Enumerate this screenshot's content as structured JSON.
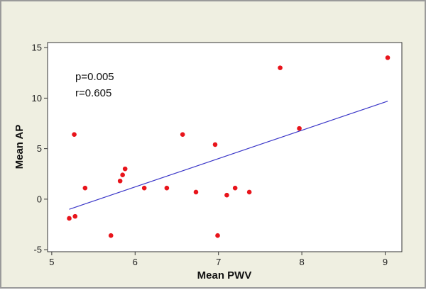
{
  "chart_data": {
    "type": "scatter",
    "title": "",
    "xlabel": "Mean PWV",
    "ylabel": "Mean AP",
    "xlim": [
      4.95,
      9.2
    ],
    "ylim": [
      -5.2,
      15.5
    ],
    "xticks": [
      5,
      6,
      7,
      8,
      9
    ],
    "yticks": [
      -5,
      0,
      5,
      10,
      15
    ],
    "grid": false,
    "legend": "none",
    "colors": {
      "point": "#e8141b",
      "fit_line": "#3a36c8",
      "plot_background": "#ffffff",
      "figure_background": "#efefe1"
    },
    "annotations": [
      "p=0.005",
      "r=0.605"
    ],
    "series": [
      {
        "points": [
          {
            "x": 5.21,
            "y": -1.9
          },
          {
            "x": 5.27,
            "y": 6.4
          },
          {
            "x": 5.28,
            "y": -1.7
          },
          {
            "x": 5.4,
            "y": 1.1
          },
          {
            "x": 5.71,
            "y": -3.6
          },
          {
            "x": 5.82,
            "y": 1.8
          },
          {
            "x": 5.85,
            "y": 2.4
          },
          {
            "x": 5.88,
            "y": 3.0
          },
          {
            "x": 6.11,
            "y": 1.1
          },
          {
            "x": 6.38,
            "y": 1.1
          },
          {
            "x": 6.57,
            "y": 6.4
          },
          {
            "x": 6.73,
            "y": 0.7
          },
          {
            "x": 6.96,
            "y": 5.4
          },
          {
            "x": 6.99,
            "y": -3.6
          },
          {
            "x": 7.1,
            "y": 0.4
          },
          {
            "x": 7.2,
            "y": 1.1
          },
          {
            "x": 7.37,
            "y": 0.7
          },
          {
            "x": 7.74,
            "y": 13.0
          },
          {
            "x": 7.97,
            "y": 7.0
          },
          {
            "x": 9.03,
            "y": 14.0
          }
        ]
      }
    ],
    "fit_line": {
      "x": [
        5.21,
        9.03
      ],
      "y": [
        -1.0,
        9.7
      ]
    }
  }
}
